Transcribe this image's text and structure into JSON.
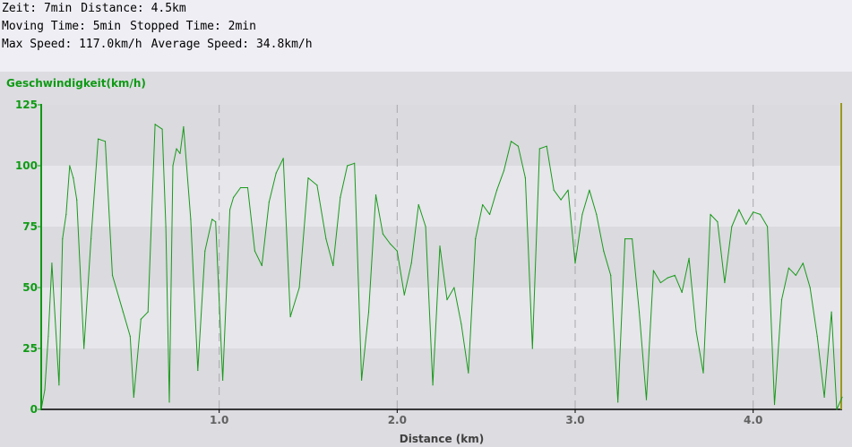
{
  "stats": {
    "time_label": "Zeit:",
    "time_value": "7min",
    "distance_label": "Distance:",
    "distance_value": "4.5km",
    "moving_label": "Moving Time:",
    "moving_value": "5min",
    "stopped_label": "Stopped Time:",
    "stopped_value": "2min",
    "max_label": "Max Speed:",
    "max_value": "117.0km/h",
    "avg_label": "Average Speed:",
    "avg_value": "34.8km/h"
  },
  "colors": {
    "line": "#1a9a1a",
    "y_axis": "#0f9a14",
    "marker": "#9a9a1c",
    "band_light": "#e6e6eb",
    "band_dark": "#dadadf",
    "text_x": "#606060"
  },
  "chart_data": {
    "type": "line",
    "title": "",
    "xlabel": "Distance (km)",
    "ylabel": "Geschwindigkeit(km/h)",
    "xlim": [
      0,
      4.5
    ],
    "ylim": [
      0,
      125
    ],
    "yticks": [
      "0",
      "25",
      "50",
      "75",
      "100",
      "125"
    ],
    "xticks": [
      "1.0",
      "2.0",
      "3.0",
      "4.0"
    ],
    "grid": "dashed vertical lines at x ticks, alternating horizontal bands",
    "series": [
      {
        "name": "",
        "x": [
          0.0,
          0.02,
          0.04,
          0.06,
          0.1,
          0.12,
          0.14,
          0.16,
          0.18,
          0.2,
          0.24,
          0.28,
          0.32,
          0.36,
          0.4,
          0.46,
          0.5,
          0.52,
          0.56,
          0.6,
          0.64,
          0.68,
          0.7,
          0.72,
          0.74,
          0.76,
          0.78,
          0.8,
          0.84,
          0.88,
          0.92,
          0.96,
          0.98,
          1.02,
          1.06,
          1.08,
          1.12,
          1.16,
          1.2,
          1.24,
          1.28,
          1.32,
          1.36,
          1.4,
          1.45,
          1.5,
          1.55,
          1.6,
          1.64,
          1.68,
          1.72,
          1.76,
          1.8,
          1.84,
          1.88,
          1.92,
          1.96,
          2.0,
          2.04,
          2.08,
          2.12,
          2.16,
          2.2,
          2.24,
          2.28,
          2.32,
          2.36,
          2.4,
          2.44,
          2.48,
          2.52,
          2.56,
          2.6,
          2.64,
          2.68,
          2.72,
          2.76,
          2.8,
          2.84,
          2.88,
          2.92,
          2.96,
          3.0,
          3.04,
          3.08,
          3.12,
          3.16,
          3.2,
          3.24,
          3.28,
          3.32,
          3.36,
          3.4,
          3.44,
          3.48,
          3.52,
          3.56,
          3.6,
          3.64,
          3.68,
          3.72,
          3.76,
          3.8,
          3.84,
          3.88,
          3.92,
          3.96,
          4.0,
          4.04,
          4.08,
          4.12,
          4.16,
          4.2,
          4.24,
          4.28,
          4.32,
          4.36,
          4.4,
          4.44,
          4.47,
          4.5
        ],
        "y": [
          0,
          8,
          30,
          60,
          10,
          70,
          80,
          100,
          95,
          86,
          25,
          70,
          111,
          110,
          55,
          40,
          30,
          5,
          37,
          40,
          117,
          115,
          75,
          3,
          100,
          107,
          105,
          116,
          78,
          16,
          65,
          78,
          77,
          12,
          82,
          87,
          91,
          91,
          65,
          59,
          85,
          97,
          103,
          38,
          50,
          95,
          92,
          70,
          59,
          87,
          100,
          101,
          12,
          40,
          88,
          72,
          68,
          65,
          47,
          60,
          84,
          75,
          10,
          67,
          45,
          50,
          35,
          15,
          70,
          84,
          80,
          90,
          98,
          110,
          108,
          95,
          25,
          107,
          108,
          90,
          86,
          90,
          60,
          80,
          90,
          80,
          65,
          55,
          3,
          70,
          70,
          40,
          4,
          57,
          52,
          54,
          55,
          48,
          62,
          32,
          15,
          80,
          77,
          52,
          75,
          82,
          76,
          81,
          80,
          75,
          2,
          45,
          58,
          55,
          60,
          50,
          30,
          5,
          40,
          0,
          5
        ]
      }
    ]
  }
}
